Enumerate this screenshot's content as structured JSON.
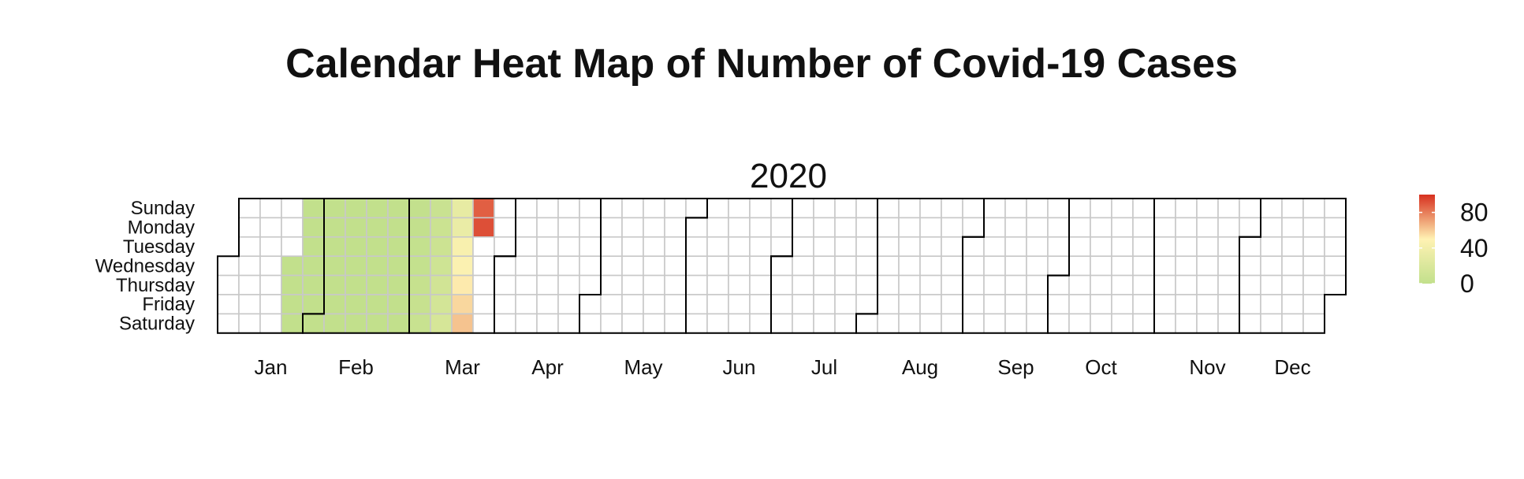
{
  "chart_data": {
    "type": "heatmap",
    "title": "Calendar Heat Map of Number of Covid-19 Cases",
    "year": "2020",
    "day_labels": [
      "Sunday",
      "Monday",
      "Tuesday",
      "Wednesday",
      "Thursday",
      "Friday",
      "Saturday"
    ],
    "month_labels": [
      "Jan",
      "Feb",
      "Mar",
      "Apr",
      "May",
      "Jun",
      "Jul",
      "Aug",
      "Sep",
      "Oct",
      "Nov",
      "Dec"
    ],
    "color_scale": {
      "low": "#c2e08c",
      "mid": "#fff2b3",
      "high": "#d7301f",
      "domain": [
        0,
        100
      ],
      "empty": "#ffffff"
    },
    "legend": {
      "ticks": [
        0,
        40,
        80
      ],
      "placement": "right"
    },
    "data": [
      [
        "2020-01-22",
        0
      ],
      [
        "2020-01-23",
        0
      ],
      [
        "2020-01-24",
        0
      ],
      [
        "2020-01-25",
        0
      ],
      [
        "2020-01-26",
        0
      ],
      [
        "2020-01-27",
        0
      ],
      [
        "2020-01-28",
        0
      ],
      [
        "2020-01-29",
        0
      ],
      [
        "2020-01-30",
        0
      ],
      [
        "2020-01-31",
        0
      ],
      [
        "2020-02-01",
        0
      ],
      [
        "2020-02-02",
        0
      ],
      [
        "2020-02-03",
        0
      ],
      [
        "2020-02-04",
        0
      ],
      [
        "2020-02-05",
        0
      ],
      [
        "2020-02-06",
        0
      ],
      [
        "2020-02-07",
        0
      ],
      [
        "2020-02-08",
        0
      ],
      [
        "2020-02-09",
        0
      ],
      [
        "2020-02-10",
        0
      ],
      [
        "2020-02-11",
        0
      ],
      [
        "2020-02-12",
        0
      ],
      [
        "2020-02-13",
        0
      ],
      [
        "2020-02-14",
        0
      ],
      [
        "2020-02-15",
        0
      ],
      [
        "2020-02-16",
        0
      ],
      [
        "2020-02-17",
        0
      ],
      [
        "2020-02-18",
        0
      ],
      [
        "2020-02-19",
        0
      ],
      [
        "2020-02-20",
        0
      ],
      [
        "2020-02-21",
        0
      ],
      [
        "2020-02-22",
        0
      ],
      [
        "2020-02-23",
        0
      ],
      [
        "2020-02-24",
        0
      ],
      [
        "2020-02-25",
        0
      ],
      [
        "2020-02-26",
        0
      ],
      [
        "2020-02-27",
        0
      ],
      [
        "2020-02-28",
        0
      ],
      [
        "2020-02-29",
        0
      ],
      [
        "2020-03-01",
        1
      ],
      [
        "2020-03-02",
        1
      ],
      [
        "2020-03-03",
        2
      ],
      [
        "2020-03-04",
        2
      ],
      [
        "2020-03-05",
        3
      ],
      [
        "2020-03-06",
        4
      ],
      [
        "2020-03-07",
        5
      ],
      [
        "2020-03-08",
        6
      ],
      [
        "2020-03-09",
        7
      ],
      [
        "2020-03-10",
        8
      ],
      [
        "2020-03-11",
        10
      ],
      [
        "2020-03-12",
        12
      ],
      [
        "2020-03-13",
        14
      ],
      [
        "2020-03-14",
        16
      ],
      [
        "2020-03-15",
        30
      ],
      [
        "2020-03-16",
        33
      ],
      [
        "2020-03-17",
        44
      ],
      [
        "2020-03-18",
        47
      ],
      [
        "2020-03-19",
        52
      ],
      [
        "2020-03-20",
        57
      ],
      [
        "2020-03-21",
        62
      ],
      [
        "2020-03-22",
        88
      ],
      [
        "2020-03-23",
        92
      ]
    ]
  }
}
